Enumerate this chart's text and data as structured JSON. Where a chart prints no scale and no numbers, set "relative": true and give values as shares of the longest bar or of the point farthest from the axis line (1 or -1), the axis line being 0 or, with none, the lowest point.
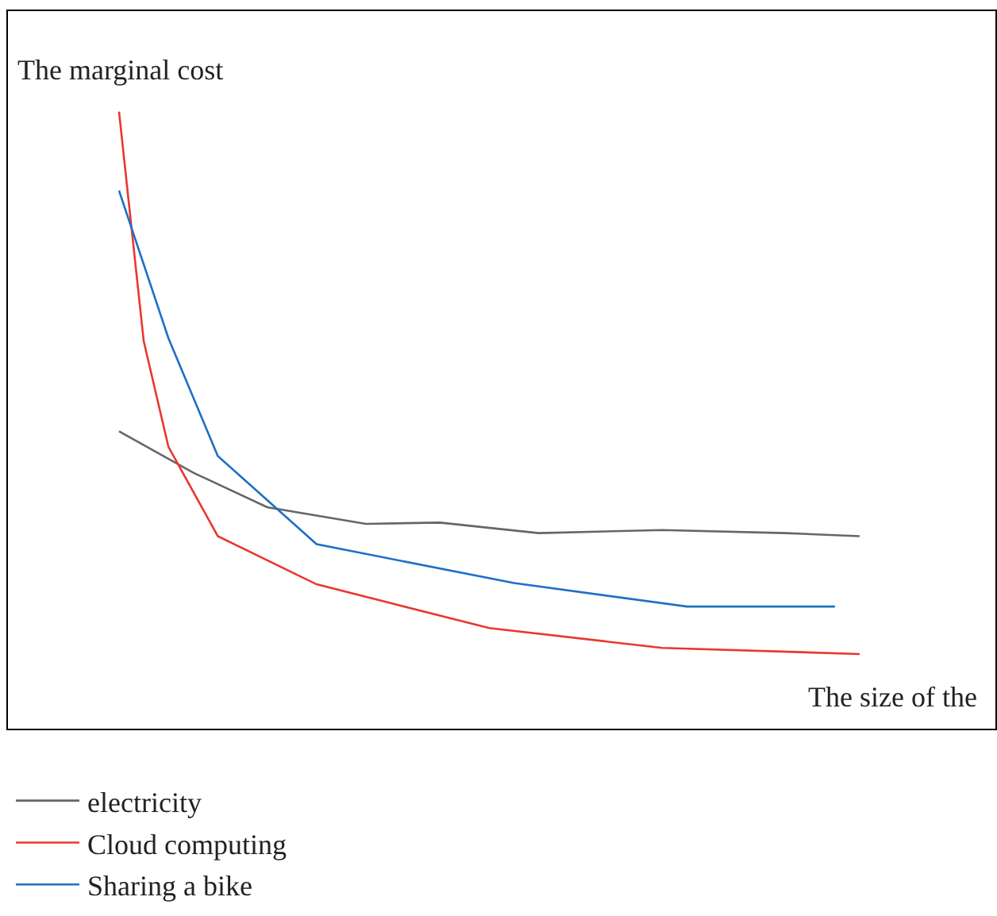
{
  "chart_data": {
    "type": "line",
    "relative": true,
    "xlabel": "The size of the",
    "ylabel": "The marginal cost",
    "legend": "bottom",
    "line_style": "solid",
    "categories": [
      null,
      null,
      null,
      null,
      null,
      null,
      null,
      null,
      null,
      null,
      null,
      null,
      null,
      null,
      null,
      null,
      null,
      null,
      null,
      null,
      null,
      null,
      null,
      null,
      null,
      null,
      null,
      null,
      null,
      null,
      null,
      null,
      null,
      null,
      null,
      null,
      null,
      null,
      null,
      null
    ],
    "series": [
      {
        "name": "electricity",
        "color": "#666666",
        "values": [
          null,
          null,
          null,
          null,
          0.482,
          null,
          null,
          0.415,
          null,
          null,
          0.359,
          null,
          null,
          null,
          0.332,
          null,
          null,
          0.334,
          null,
          null,
          null,
          0.317,
          null,
          null,
          null,
          null,
          0.322,
          null,
          null,
          null,
          null,
          0.317,
          null,
          null,
          0.312,
          null,
          null,
          null,
          null,
          null
        ]
      },
      {
        "name": "Cloud computing",
        "color": "#e8382f",
        "values": [
          null,
          null,
          null,
          null,
          1.0,
          0.628,
          0.457,
          null,
          0.312,
          null,
          null,
          null,
          0.234,
          null,
          null,
          null,
          null,
          null,
          null,
          0.163,
          null,
          null,
          null,
          null,
          null,
          null,
          0.131,
          null,
          null,
          null,
          null,
          null,
          null,
          null,
          0.121,
          null,
          null,
          null,
          null,
          null
        ]
      },
      {
        "name": "Sharing a bike",
        "color": "#1f6fc5",
        "values": [
          null,
          null,
          null,
          null,
          0.872,
          null,
          0.633,
          null,
          0.442,
          null,
          null,
          null,
          0.299,
          null,
          null,
          null,
          null,
          null,
          null,
          null,
          0.236,
          null,
          null,
          null,
          null,
          null,
          null,
          0.198,
          null,
          null,
          null,
          null,
          null,
          0.198,
          null,
          null,
          null,
          null,
          null,
          null
        ]
      }
    ]
  }
}
